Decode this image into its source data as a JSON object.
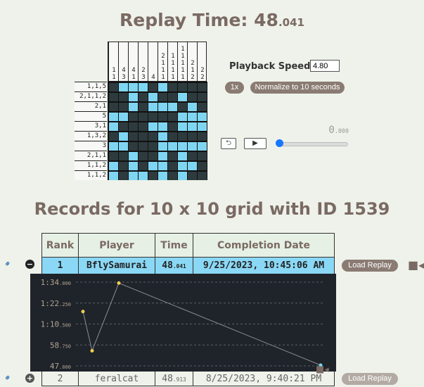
{
  "replay": {
    "label": "Replay Time: ",
    "sec": "48",
    "ms": ".041"
  },
  "nonogram": {
    "col_clues": [
      [
        "1",
        "1"
      ],
      [
        "4",
        "3"
      ],
      [
        "4",
        "1"
      ],
      [
        "2",
        "3"
      ],
      [
        "4"
      ],
      [
        "2",
        "1",
        "1",
        "1"
      ],
      [
        "1",
        "1",
        "1",
        "1"
      ],
      [
        "1",
        "1",
        "1",
        "1",
        "1"
      ],
      [
        "2",
        "1",
        "2"
      ],
      [
        "2",
        "2"
      ]
    ],
    "row_clues": [
      "1,1,5",
      "2,1,1,2",
      "2,1",
      "5",
      "3,1",
      "1,3,2",
      "3",
      "2,1,1",
      "1,1,2",
      "1,1,2"
    ],
    "cells": [
      "1000101111",
      "1101011011",
      "1101000101",
      "0011111000",
      "0111001000",
      "1011101111",
      "0011100000",
      "1101101011",
      "0101001001",
      "0100101011"
    ]
  },
  "playback": {
    "speed_label": "Playback Speed:",
    "speed_value": "4.80",
    "btn_1x": "1x",
    "btn_normalize": "Normalize to 10 seconds",
    "clock_sec": "0",
    "clock_ms": ".000",
    "rewind_glyph": "⮌",
    "play_glyph": "▶"
  },
  "records": {
    "title": "Records for 10 x 10 grid with ID 1539",
    "headers": {
      "rank": "Rank",
      "player": "Player",
      "time": "Time",
      "date": "Completion Date"
    },
    "rows": [
      {
        "rank": "1",
        "player": "BflySamurai",
        "time_s": "48",
        "time_ms": ".041",
        "date": "9/25/2023, 10:45:06 AM",
        "load": "Load Replay",
        "toggle": "−"
      },
      {
        "rank": "2",
        "player": "feralcat",
        "time_s": "48",
        "time_ms": ".913",
        "date": "8/25/2023, 9:40:21 PM",
        "load": "Load Replay",
        "toggle": "+"
      }
    ]
  },
  "chart_data": {
    "type": "line",
    "x": [
      1,
      2,
      3,
      4
    ],
    "y_seconds": [
      77.5,
      55.5,
      93.5,
      47.4
    ],
    "ytick_labels": [
      [
        "1:34",
        ".000"
      ],
      [
        "1:22",
        ".250"
      ],
      [
        "1:10",
        ".500"
      ],
      [
        "58",
        ".750"
      ],
      [
        "47",
        ".000"
      ]
    ],
    "ylim": [
      47.0,
      94.0
    ],
    "grid": true,
    "colors": {
      "background": "#1f232a",
      "point": "#f0d050",
      "line": "#8a8d93",
      "grid": "#5a5e66",
      "label": "#b0a590",
      "last_point": "#7fd6f2"
    }
  }
}
